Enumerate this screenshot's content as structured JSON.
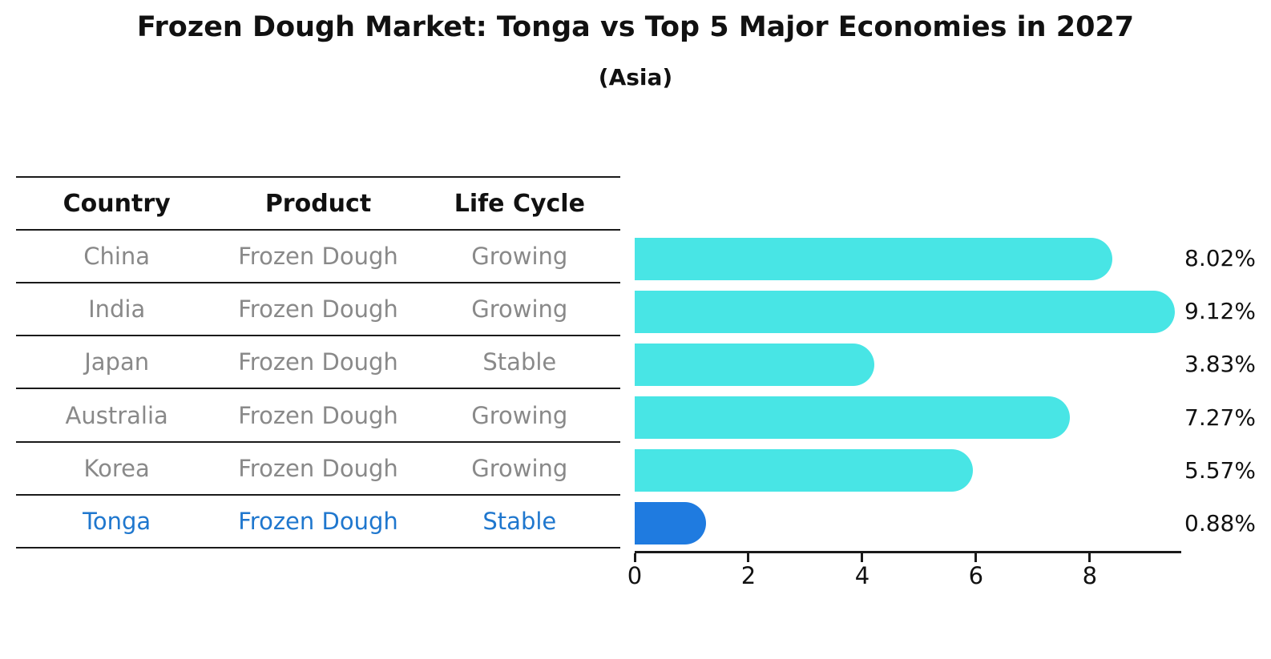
{
  "title": "Frozen Dough Market: Tonga vs Top 5 Major Economies in 2027",
  "subtitle": "(Asia)",
  "table": {
    "headers": [
      "Country",
      "Product",
      "Life Cycle"
    ],
    "rows": [
      {
        "country": "China",
        "product": "Frozen Dough",
        "life_cycle": "Growing",
        "highlight": false
      },
      {
        "country": "India",
        "product": "Frozen Dough",
        "life_cycle": "Growing",
        "highlight": false
      },
      {
        "country": "Japan",
        "product": "Frozen Dough",
        "life_cycle": "Stable",
        "highlight": false
      },
      {
        "country": "Australia",
        "product": "Frozen Dough",
        "life_cycle": "Growing",
        "highlight": false
      },
      {
        "country": "Korea",
        "product": "Frozen Dough",
        "life_cycle": "Growing",
        "highlight": false
      },
      {
        "country": "Tonga",
        "product": "Frozen Dough",
        "life_cycle": "Stable",
        "highlight": true
      }
    ]
  },
  "chart_data": {
    "type": "bar",
    "orientation": "horizontal",
    "categories": [
      "China",
      "India",
      "Japan",
      "Australia",
      "Korea",
      "Tonga"
    ],
    "values": [
      8.02,
      9.12,
      3.83,
      7.27,
      5.57,
      0.88
    ],
    "value_labels": [
      "8.02%",
      "9.12%",
      "3.83%",
      "7.27%",
      "5.57%",
      "0.88%"
    ],
    "x_ticks": [
      0,
      2,
      4,
      6,
      8
    ],
    "xlim": [
      0,
      9.58
    ],
    "grid": false,
    "legend": false,
    "highlight_index": 5
  },
  "colors": {
    "bar_color": "#48E5E5",
    "highlight_bar_color": "#1F7BE0",
    "highlight_text_color": "#1F77CE",
    "table_text_color": "#898989",
    "axis_color": "#1a1a1a",
    "label_color": "#111111"
  }
}
